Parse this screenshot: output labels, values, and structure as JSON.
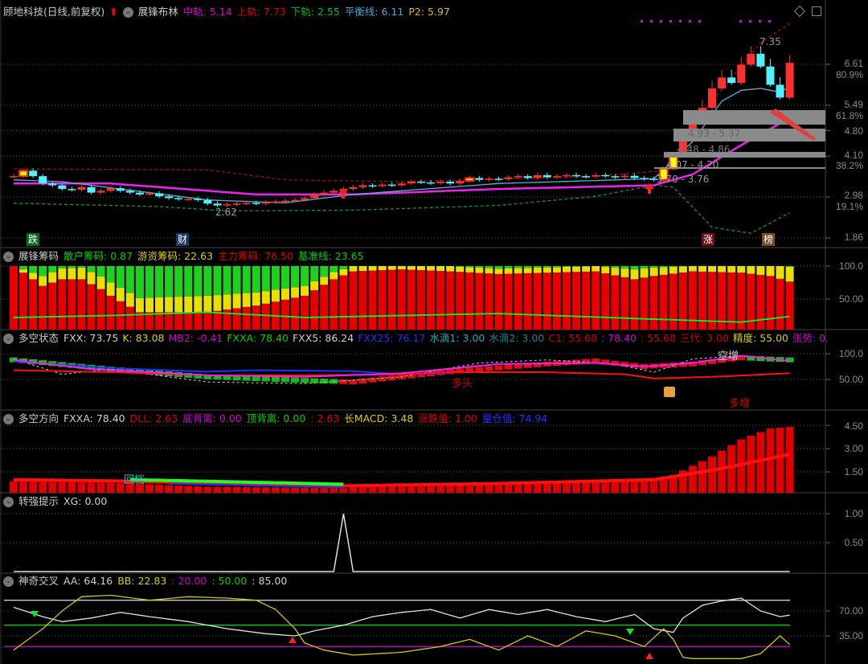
{
  "main": {
    "title": "顾地科技(日线,前复权)",
    "indicator": "展锋布林",
    "values": [
      {
        "label": "中轨: 5.14",
        "color": "#e000e0"
      },
      {
        "label": "上轨: 7.73",
        "color": "#e00000"
      },
      {
        "label": "下轨: 2.55",
        "color": "#00c000"
      },
      {
        "label": "平衡线: 6.11",
        "color": "#4aa8d8"
      },
      {
        "label": "P2: 5.97",
        "color": "#d8c000"
      }
    ],
    "axis": [
      "6.61",
      "80.9%",
      "5.49",
      "61.8%",
      "4.80",
      "4.10",
      "38.2%",
      "2.98",
      "19.1%",
      "1.86"
    ],
    "fib_labels": [
      "4.93 - 5.37",
      "4.48 - 4.86",
      "4.07 - 4.20",
      "3.70 - 3.76"
    ],
    "high_label": "7.35",
    "low_label": "2.62",
    "markers": [
      "跌",
      "财",
      "涨",
      "榜"
    ]
  },
  "chip": {
    "title": "展锋筹码",
    "values": [
      {
        "label": "散户筹码: 0.87",
        "color": "#00d000"
      },
      {
        "label": "游资筹码: 22.63",
        "color": "#d8d000"
      },
      {
        "label": "主力筹码: 76.50",
        "color": "#e00000"
      },
      {
        "label": "基准线: 23.65",
        "color": "#00d000"
      }
    ],
    "axis": [
      "100.0",
      "50.00"
    ]
  },
  "state": {
    "title": "多空状态",
    "values": [
      {
        "label": "FXX: 73.75",
        "color": "#d0d0d0"
      },
      {
        "label": "K: 83.08",
        "color": "#d8d000"
      },
      {
        "label": "MB2: -0.41",
        "color": "#d000d0"
      },
      {
        "label": "FXXA: 78.40",
        "color": "#00d000"
      },
      {
        "label": "FXX5: 86.24",
        "color": "#d0d0d0"
      },
      {
        "label": "FXX25: 76.17",
        "color": "#2030ff"
      },
      {
        "label": "水滴1: 3.00",
        "color": "#20b0c0"
      },
      {
        "label": "水滴2: 3.00",
        "color": "#108890"
      },
      {
        "label": "C1: 55.68",
        "color": "#d00000"
      },
      {
        "label": ": 78.40",
        "color": "#d000d0"
      },
      {
        "label": ": 55.68",
        "color": "#d00000"
      },
      {
        "label": "三代: 3.00",
        "color": "#d00000"
      },
      {
        "label": "精度: 55.00",
        "color": "#d8d000"
      },
      {
        "label": "张势: 0.",
        "color": "#d000d0"
      }
    ],
    "axis": [
      "100.0",
      "50.00"
    ],
    "annotations": [
      "多头",
      "空增",
      "多增"
    ]
  },
  "direction": {
    "title": "多空方向",
    "values": [
      {
        "label": "FXXA: 78.40",
        "color": "#d0d0d0"
      },
      {
        "label": "DLL: 2.63",
        "color": "#e00000"
      },
      {
        "label": "底背离: 0.00",
        "color": "#d000d0"
      },
      {
        "label": "顶背离: 0.00",
        "color": "#00d000"
      },
      {
        "label": ": 2.63",
        "color": "#e00000"
      },
      {
        "label": "长MACD: 3.48",
        "color": "#d8d000"
      },
      {
        "label": "涨跌值: 1.00",
        "color": "#e00000"
      },
      {
        "label": "量仓值: 74.94",
        "color": "#2030ff"
      }
    ],
    "axis": [
      "4.50",
      "3.00",
      "1.50"
    ],
    "annotation": "回档"
  },
  "strong": {
    "title": "转强提示",
    "values": [
      {
        "label": "XG: 0.00",
        "color": "#d0d0d0"
      }
    ],
    "axis": [
      "1.00",
      "0.50"
    ]
  },
  "cross": {
    "title": "神奇交叉",
    "values": [
      {
        "label": "AA: 64.16",
        "color": "#d0d0d0"
      },
      {
        "label": "BB: 22.83",
        "color": "#d8d000"
      },
      {
        "label": ": 20.00",
        "color": "#d000d0"
      },
      {
        "label": ": 50.00",
        "color": "#00d000"
      },
      {
        "label": ": 85.00",
        "color": "#d0d0d0"
      }
    ],
    "axis": [
      "70.00",
      "35.00"
    ]
  },
  "chart_data": [
    {
      "type": "candlestick",
      "name": "展锋布林",
      "closes": [
        3.55,
        3.7,
        3.55,
        3.35,
        3.3,
        3.2,
        3.18,
        3.25,
        3.1,
        3.15,
        3.22,
        3.15,
        3.1,
        3.05,
        3.08,
        3.0,
        2.95,
        2.92,
        2.93,
        2.9,
        2.8,
        2.75,
        2.78,
        2.8,
        2.82,
        2.8,
        2.84,
        2.86,
        2.88,
        2.9,
        2.95,
        3.05,
        3.1,
        3.15,
        3.2,
        3.25,
        3.3,
        3.28,
        3.32,
        3.3,
        3.35,
        3.4,
        3.38,
        3.36,
        3.4,
        3.35,
        3.42,
        3.5,
        3.45,
        3.48,
        3.47,
        3.52,
        3.55,
        3.5,
        3.58,
        3.52,
        3.55,
        3.58,
        3.55,
        3.54,
        3.58,
        3.55,
        3.52,
        3.56,
        3.5,
        3.48,
        3.45,
        3.76,
        4.14,
        4.55,
        5.0,
        5.42,
        5.95,
        6.25,
        6.1,
        6.6,
        6.9,
        6.55,
        6.05,
        5.7,
        6.65
      ],
      "limit_up": [
        1,
        47,
        67,
        68
      ],
      "upper": [
        [
          0,
          3.75
        ],
        [
          20,
          3.72
        ],
        [
          28,
          3.45
        ],
        [
          40,
          3.4
        ],
        [
          60,
          3.55
        ],
        [
          67,
          3.7
        ],
        [
          72,
          5.6
        ],
        [
          77,
          7.2
        ],
        [
          80,
          7.73
        ]
      ],
      "mid": [
        [
          0,
          3.35
        ],
        [
          10,
          3.35
        ],
        [
          25,
          3.05
        ],
        [
          35,
          3.05
        ],
        [
          50,
          3.2
        ],
        [
          66,
          3.3
        ],
        [
          70,
          3.6
        ],
        [
          75,
          4.4
        ],
        [
          80,
          5.14
        ]
      ],
      "lower": [
        [
          0,
          2.81
        ],
        [
          15,
          2.72
        ],
        [
          22,
          2.6
        ],
        [
          35,
          2.62
        ],
        [
          50,
          2.75
        ],
        [
          60,
          3.0
        ],
        [
          66,
          3.3
        ],
        [
          68,
          3.25
        ],
        [
          72,
          2.15
        ],
        [
          76,
          1.99
        ],
        [
          80,
          2.55
        ]
      ],
      "balance": [
        [
          0,
          3.45
        ],
        [
          5,
          3.4
        ],
        [
          20,
          2.9
        ],
        [
          28,
          2.82
        ],
        [
          35,
          3.05
        ],
        [
          50,
          3.35
        ],
        [
          66,
          3.48
        ],
        [
          70,
          4.5
        ],
        [
          73,
          5.6
        ],
        [
          75,
          5.9
        ],
        [
          77,
          5.95
        ],
        [
          79,
          5.85
        ],
        [
          80,
          6.0
        ]
      ],
      "ylim": [
        1.86,
        6.61
      ]
    },
    {
      "type": "bar",
      "name": "展锋筹码",
      "stacked": true,
      "main_force": [
        [
          0,
          100
        ],
        [
          2,
          80
        ],
        [
          3,
          70
        ],
        [
          5,
          80
        ],
        [
          7,
          80
        ],
        [
          9,
          65
        ],
        [
          10,
          55
        ],
        [
          13,
          30
        ],
        [
          20,
          30
        ],
        [
          25,
          40
        ],
        [
          30,
          55
        ],
        [
          33,
          80
        ],
        [
          35,
          92
        ],
        [
          40,
          95
        ],
        [
          45,
          92
        ],
        [
          50,
          88
        ],
        [
          55,
          90
        ],
        [
          60,
          92
        ],
        [
          64,
          80
        ],
        [
          66,
          85
        ],
        [
          70,
          92
        ],
        [
          75,
          90
        ],
        [
          78,
          85
        ],
        [
          80,
          76.5
        ]
      ],
      "hot_money": [
        [
          0,
          0
        ],
        [
          3,
          15
        ],
        [
          10,
          20
        ],
        [
          20,
          25
        ],
        [
          30,
          15
        ],
        [
          35,
          8
        ],
        [
          60,
          8
        ],
        [
          64,
          15
        ],
        [
          70,
          8
        ],
        [
          78,
          20
        ],
        [
          80,
          22.63
        ]
      ],
      "baseline": [
        [
          0,
          22
        ],
        [
          10,
          25
        ],
        [
          20,
          30
        ],
        [
          30,
          22
        ],
        [
          40,
          25
        ],
        [
          50,
          28
        ],
        [
          65,
          20
        ],
        [
          75,
          15
        ],
        [
          80,
          23.65
        ]
      ],
      "ylim": [
        0,
        100
      ]
    },
    {
      "type": "line",
      "name": "多空状态",
      "magenta": [
        [
          0,
          88
        ],
        [
          8,
          70
        ],
        [
          20,
          58
        ],
        [
          30,
          55
        ],
        [
          40,
          62
        ],
        [
          50,
          80
        ],
        [
          60,
          82
        ],
        [
          65,
          75
        ],
        [
          70,
          82
        ],
        [
          75,
          96
        ],
        [
          80,
          86
        ]
      ],
      "red": [
        [
          0,
          68
        ],
        [
          10,
          64
        ],
        [
          20,
          58
        ],
        [
          30,
          58
        ],
        [
          40,
          60
        ],
        [
          45,
          64
        ],
        [
          55,
          64
        ],
        [
          63,
          60
        ],
        [
          66,
          52
        ],
        [
          72,
          55
        ],
        [
          80,
          62
        ]
      ],
      "blue": [
        [
          0,
          85
        ],
        [
          10,
          72
        ],
        [
          20,
          65
        ],
        [
          25,
          68
        ],
        [
          35,
          66
        ],
        [
          40,
          60
        ],
        [
          45,
          62
        ]
      ],
      "white": [
        [
          0,
          90
        ],
        [
          5,
          60
        ],
        [
          10,
          70
        ],
        [
          20,
          45
        ],
        [
          30,
          42
        ],
        [
          40,
          55
        ],
        [
          48,
          82
        ],
        [
          55,
          88
        ],
        [
          62,
          80
        ],
        [
          66,
          64
        ],
        [
          70,
          90
        ],
        [
          75,
          96
        ],
        [
          80,
          85
        ]
      ],
      "blocks": [
        [
          0,
          88
        ],
        [
          10,
          70
        ],
        [
          20,
          55
        ],
        [
          30,
          48
        ],
        [
          35,
          45
        ],
        [
          45,
          65
        ],
        [
          55,
          80
        ],
        [
          60,
          86
        ],
        [
          65,
          75
        ],
        [
          70,
          80
        ],
        [
          75,
          92
        ],
        [
          80,
          88
        ]
      ],
      "ylim": [
        0,
        100
      ]
    },
    {
      "type": "bar",
      "name": "多空方向",
      "bars": [
        [
          0,
          0.9
        ],
        [
          10,
          0.8
        ],
        [
          20,
          0.55
        ],
        [
          34,
          0.45
        ],
        [
          35,
          0.65
        ],
        [
          50,
          0.8
        ],
        [
          65,
          1.0
        ],
        [
          68,
          1.3
        ],
        [
          72,
          2.5
        ],
        [
          75,
          3.6
        ],
        [
          78,
          4.3
        ],
        [
          80,
          4.4
        ]
      ],
      "line": [
        [
          0,
          1.0
        ],
        [
          12,
          0.9
        ],
        [
          34,
          0.6
        ],
        [
          50,
          0.75
        ],
        [
          66,
          1.0
        ],
        [
          72,
          1.6
        ],
        [
          80,
          2.63
        ]
      ],
      "ylim": [
        0,
        4.5
      ]
    },
    {
      "type": "line",
      "name": "转强提示",
      "xg_spike_index": 34,
      "ylim": [
        0,
        1
      ]
    },
    {
      "type": "line",
      "name": "神奇交叉",
      "AA": [
        [
          0,
          75
        ],
        [
          3,
          62
        ],
        [
          5,
          55
        ],
        [
          8,
          60
        ],
        [
          11,
          68
        ],
        [
          14,
          62
        ],
        [
          18,
          55
        ],
        [
          22,
          45
        ],
        [
          26,
          38
        ],
        [
          29,
          35
        ],
        [
          31,
          42
        ],
        [
          34,
          50
        ],
        [
          37,
          62
        ],
        [
          40,
          68
        ],
        [
          43,
          72
        ],
        [
          46,
          60
        ],
        [
          49,
          72
        ],
        [
          52,
          65
        ],
        [
          55,
          72
        ],
        [
          58,
          62
        ],
        [
          61,
          55
        ],
        [
          64,
          65
        ],
        [
          66,
          45
        ],
        [
          68,
          40
        ],
        [
          69,
          60
        ],
        [
          71,
          78
        ],
        [
          73,
          84
        ],
        [
          75,
          88
        ],
        [
          77,
          70
        ],
        [
          79,
          62
        ],
        [
          80,
          64.16
        ]
      ],
      "BB": [
        [
          0,
          15
        ],
        [
          3,
          45
        ],
        [
          5,
          70
        ],
        [
          7,
          90
        ],
        [
          10,
          92
        ],
        [
          14,
          85
        ],
        [
          18,
          90
        ],
        [
          22,
          88
        ],
        [
          25,
          85
        ],
        [
          27,
          72
        ],
        [
          29,
          45
        ],
        [
          30,
          25
        ],
        [
          32,
          15
        ],
        [
          35,
          8
        ],
        [
          40,
          12
        ],
        [
          44,
          20
        ],
        [
          47,
          30
        ],
        [
          50,
          15
        ],
        [
          53,
          35
        ],
        [
          56,
          20
        ],
        [
          59,
          42
        ],
        [
          62,
          35
        ],
        [
          65,
          20
        ],
        [
          67,
          45
        ],
        [
          68,
          30
        ],
        [
          69,
          5
        ],
        [
          70,
          3
        ],
        [
          75,
          3
        ],
        [
          77,
          10
        ],
        [
          79,
          35
        ],
        [
          80,
          22.83
        ]
      ],
      "levels": [
        20,
        50,
        85
      ],
      "ylim": [
        0,
        100
      ]
    }
  ]
}
